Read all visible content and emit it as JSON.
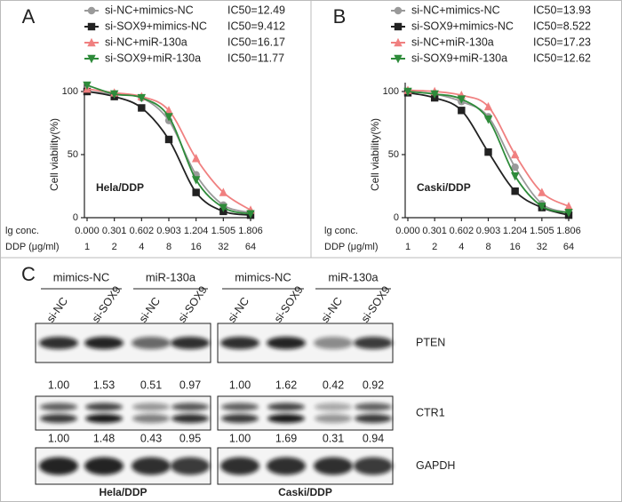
{
  "chart_data": [
    {
      "type": "line",
      "panel_label": "A",
      "annotation": "Hela/DDP",
      "ylabel": "Cell viability(%)",
      "xlabel": "lg conc.",
      "x": [
        0,
        0.301,
        0.602,
        0.903,
        1.204,
        1.505,
        1.806
      ],
      "xticks": [
        {
          "value": 0,
          "label": "0.000"
        },
        0.301,
        0.602,
        0.903,
        1.204,
        1.505,
        1.806
      ],
      "dose_label": "DDP (μg/ml)",
      "doses": [
        1,
        2,
        4,
        8,
        16,
        32,
        64
      ],
      "xlim": [
        0,
        1.806
      ],
      "ylim": [
        0,
        100
      ],
      "yticks": [
        0,
        50,
        100
      ],
      "series": [
        {
          "name": "si-NC+mimics-NC",
          "ic50_label": "IC50=12.49",
          "color": "#9a9a9a",
          "marker": "circle",
          "values": [
            100,
            98,
            95,
            77,
            34,
            10,
            4
          ]
        },
        {
          "name": "si-SOX9+mimics-NC",
          "ic50_label": "IC50=9.412",
          "color": "#222222",
          "marker": "square",
          "values": [
            100,
            96,
            87,
            62,
            20,
            5,
            2
          ]
        },
        {
          "name": "si-NC+miR-130a",
          "ic50_label": "IC50=16.17",
          "color": "#f08080",
          "marker": "triangle-up",
          "values": [
            102,
            99,
            96,
            85,
            47,
            20,
            6
          ]
        },
        {
          "name": "si-SOX9+miR-130a",
          "ic50_label": "IC50=11.77",
          "color": "#2e8b3a",
          "marker": "triangle-down",
          "values": [
            105,
            98,
            95,
            80,
            30,
            8,
            3
          ]
        }
      ]
    },
    {
      "type": "line",
      "panel_label": "B",
      "annotation": "Caski/DDP",
      "ylabel": "Cell viability(%)",
      "xlabel": "lg conc.",
      "x": [
        0,
        0.301,
        0.602,
        0.903,
        1.204,
        1.505,
        1.806
      ],
      "xticks": [
        {
          "value": 0,
          "label": "0.000"
        },
        0.301,
        0.602,
        0.903,
        1.204,
        1.505,
        1.806
      ],
      "dose_label": "DDP (μg/ml)",
      "doses": [
        1,
        2,
        4,
        8,
        16,
        32,
        64
      ],
      "xlim": [
        0,
        1.806
      ],
      "ylim": [
        0,
        100
      ],
      "yticks": [
        0,
        50,
        100
      ],
      "series": [
        {
          "name": "si-NC+mimics-NC",
          "ic50_label": "IC50=13.93",
          "color": "#9a9a9a",
          "marker": "circle",
          "values": [
            100,
            98,
            92,
            80,
            40,
            11,
            4
          ]
        },
        {
          "name": "si-SOX9+mimics-NC",
          "ic50_label": "IC50=8.522",
          "color": "#222222",
          "marker": "square",
          "values": [
            99,
            95,
            85,
            52,
            21,
            8,
            2
          ]
        },
        {
          "name": "si-NC+miR-130a",
          "ic50_label": "IC50=17.23",
          "color": "#f08080",
          "marker": "triangle-up",
          "values": [
            101,
            100,
            97,
            88,
            50,
            20,
            9
          ]
        },
        {
          "name": "si-SOX9+miR-130a",
          "ic50_label": "IC50=12.62",
          "color": "#2e8b3a",
          "marker": "triangle-down",
          "values": [
            100,
            98,
            94,
            78,
            33,
            9,
            4
          ]
        }
      ]
    }
  ],
  "blot": {
    "panel_label": "C",
    "proteins": [
      "PTEN",
      "CTR1",
      "GAPDH"
    ],
    "cell_lines": [
      {
        "name": "Hela/DDP",
        "groups": [
          "mimics-NC",
          "miR-130a"
        ],
        "lanes": [
          "si-NC",
          "si-SOX9",
          "si-NC",
          "si-SOX9"
        ],
        "ratios": [
          [
            "1.00",
            "1.53",
            "0.51",
            "0.97"
          ],
          [
            "1.00",
            "1.48",
            "0.43",
            "0.95"
          ]
        ]
      },
      {
        "name": "Caski/DDP",
        "groups": [
          "mimics-NC",
          "miR-130a"
        ],
        "lanes": [
          "si-NC",
          "si-SOX9",
          "si-NC",
          "si-SOX9"
        ],
        "ratios": [
          [
            "1.00",
            "1.62",
            "0.42",
            "0.92"
          ],
          [
            "1.00",
            "1.69",
            "0.31",
            "0.94"
          ]
        ]
      }
    ]
  }
}
